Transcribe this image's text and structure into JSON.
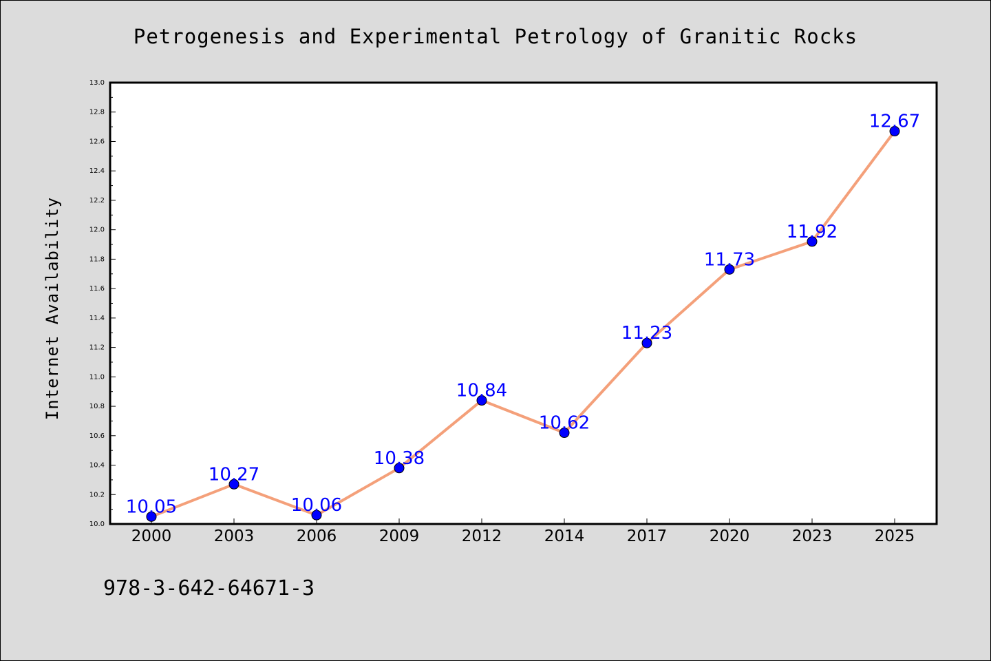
{
  "chart_data": {
    "type": "line",
    "title": "Petrogenesis and Experimental Petrology of Granitic Rocks",
    "xlabel": "",
    "ylabel": "Internet Availability",
    "categories": [
      "2000",
      "2003",
      "2006",
      "2009",
      "2012",
      "2014",
      "2017",
      "2020",
      "2023",
      "2025"
    ],
    "series": [
      {
        "values": [
          10.05,
          10.27,
          10.06,
          10.38,
          10.84,
          10.62,
          11.23,
          11.73,
          11.92,
          12.67
        ]
      }
    ],
    "data_labels": [
      "10.05",
      "10.27",
      "10.06",
      "10.38",
      "10.84",
      "10.62",
      "11.23",
      "11.73",
      "11.92",
      "12.67"
    ],
    "ylim": [
      10.0,
      13.0
    ],
    "yticks": [
      "10.0",
      "10.2",
      "10.4",
      "10.6",
      "10.8",
      "11.0",
      "11.2",
      "11.4",
      "11.6",
      "11.8",
      "12.0",
      "12.2",
      "12.4",
      "12.6",
      "12.8",
      "13.0"
    ],
    "grid": false,
    "legend": "none",
    "colors": {
      "line": "#f4a07a",
      "marker": "#0000ff",
      "data_label": "#0000ff",
      "background": "#dcdcdc",
      "plot_background": "#ffffff"
    }
  },
  "footer": {
    "isbn": "978-3-642-64671-3"
  }
}
